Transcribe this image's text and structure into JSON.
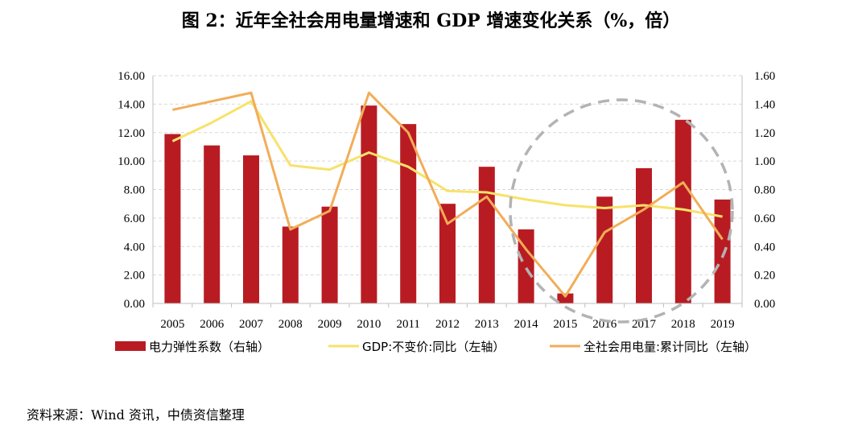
{
  "title": "图 2：近年全社会用电量增速和 GDP 增速变化关系（%，倍）",
  "source": "资料来源：Wind 资讯，中债资信整理",
  "chart_data": {
    "type": "bar",
    "title": "图 2：近年全社会用电量增速和 GDP 增速变化关系（%，倍）",
    "categories": [
      "2005",
      "2006",
      "2007",
      "2008",
      "2009",
      "2010",
      "2011",
      "2012",
      "2013",
      "2014",
      "2015",
      "2016",
      "2017",
      "2018",
      "2019"
    ],
    "left_axis": {
      "min": 0,
      "max": 16,
      "ticks": [
        "0.00",
        "2.00",
        "4.00",
        "6.00",
        "8.00",
        "10.00",
        "12.00",
        "14.00",
        "16.00"
      ]
    },
    "right_axis": {
      "min": 0,
      "max": 1.6,
      "ticks": [
        "0.00",
        "0.20",
        "0.40",
        "0.60",
        "0.80",
        "1.00",
        "1.20",
        "1.40",
        "1.60"
      ]
    },
    "grid": true,
    "legend_position": "bottom",
    "series": [
      {
        "name": "电力弹性系数（右轴）",
        "kind": "bar",
        "axis": "right",
        "color": "#b81c22",
        "values": [
          1.19,
          1.11,
          1.04,
          0.54,
          0.68,
          1.39,
          1.26,
          0.7,
          0.96,
          0.52,
          0.07,
          0.75,
          0.95,
          1.29,
          0.73
        ]
      },
      {
        "name": "GDP:不变价:同比（左轴）",
        "kind": "line",
        "axis": "left",
        "color": "#f7e26b",
        "values": [
          11.4,
          12.7,
          14.2,
          9.7,
          9.4,
          10.6,
          9.6,
          7.9,
          7.8,
          7.3,
          6.9,
          6.7,
          6.9,
          6.6,
          6.1
        ]
      },
      {
        "name": "全社会用电量:累计同比（左轴）",
        "kind": "line",
        "axis": "left",
        "color": "#f2ad58",
        "values": [
          13.6,
          14.2,
          14.8,
          5.2,
          6.5,
          14.8,
          12.0,
          5.6,
          7.5,
          3.8,
          0.5,
          5.0,
          6.6,
          8.5,
          4.5
        ]
      }
    ],
    "annotation": {
      "type": "dashed-circle",
      "color": "#b3b3b3",
      "around": [
        "2015",
        "2016",
        "2017",
        "2018"
      ]
    }
  }
}
